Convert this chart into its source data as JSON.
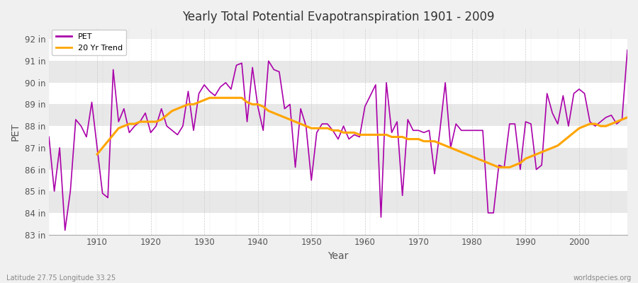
{
  "title": "Yearly Total Potential Evapotranspiration 1901 - 2009",
  "xlabel": "Year",
  "ylabel": "PET",
  "subtitle_left": "Latitude 27.75 Longitude 33.25",
  "subtitle_right": "worldspecies.org",
  "pet_color": "#AA00AA",
  "trend_color": "#FFA500",
  "bg_color": "#F0F0F0",
  "plot_bg_color": "#F0F0F0",
  "band_color_light": "#FFFFFF",
  "band_color_dark": "#E8E8E8",
  "grid_color": "#CCCCCC",
  "ylim": [
    83,
    92.5
  ],
  "yticks": [
    83,
    84,
    85,
    86,
    87,
    88,
    89,
    90,
    91,
    92
  ],
  "ytick_labels": [
    "83 in",
    "84 in",
    "85 in",
    "86 in",
    "87 in",
    "88 in",
    "89 in",
    "90 in",
    "91 in",
    "92 in"
  ],
  "xticks": [
    1910,
    1920,
    1930,
    1940,
    1950,
    1960,
    1970,
    1980,
    1990,
    2000
  ],
  "years": [
    1901,
    1902,
    1903,
    1904,
    1905,
    1906,
    1907,
    1908,
    1909,
    1910,
    1911,
    1912,
    1913,
    1914,
    1915,
    1916,
    1917,
    1918,
    1919,
    1920,
    1921,
    1922,
    1923,
    1924,
    1925,
    1926,
    1927,
    1928,
    1929,
    1930,
    1931,
    1932,
    1933,
    1934,
    1935,
    1936,
    1937,
    1938,
    1939,
    1940,
    1941,
    1942,
    1943,
    1944,
    1945,
    1946,
    1947,
    1948,
    1949,
    1950,
    1951,
    1952,
    1953,
    1954,
    1955,
    1956,
    1957,
    1958,
    1959,
    1960,
    1961,
    1962,
    1963,
    1964,
    1965,
    1966,
    1967,
    1968,
    1969,
    1970,
    1971,
    1972,
    1973,
    1974,
    1975,
    1976,
    1977,
    1978,
    1979,
    1980,
    1981,
    1982,
    1983,
    1984,
    1985,
    1986,
    1987,
    1988,
    1989,
    1990,
    1991,
    1992,
    1993,
    1994,
    1995,
    1996,
    1997,
    1998,
    1999,
    2000,
    2001,
    2002,
    2003,
    2004,
    2005,
    2006,
    2007,
    2008,
    2009
  ],
  "pet_values": [
    87.5,
    85.0,
    87.0,
    83.2,
    85.0,
    88.3,
    88.0,
    87.5,
    89.1,
    87.0,
    84.9,
    84.7,
    90.6,
    88.2,
    88.8,
    87.7,
    88.0,
    88.2,
    88.6,
    87.7,
    88.0,
    88.8,
    88.0,
    87.8,
    87.6,
    88.0,
    89.6,
    87.8,
    89.5,
    89.9,
    89.6,
    89.4,
    89.8,
    90.0,
    89.7,
    90.8,
    90.9,
    88.2,
    90.7,
    88.9,
    87.8,
    91.0,
    90.6,
    90.5,
    88.8,
    89.0,
    86.1,
    88.8,
    88.0,
    85.5,
    87.7,
    88.1,
    88.1,
    87.8,
    87.4,
    88.0,
    87.4,
    87.6,
    87.5,
    88.9,
    89.4,
    89.9,
    83.8,
    90.0,
    87.7,
    88.2,
    84.8,
    88.3,
    87.8,
    87.8,
    87.7,
    87.8,
    85.8,
    87.8,
    90.0,
    87.0,
    88.1,
    87.8,
    87.8,
    87.8,
    87.8,
    87.8,
    84.0,
    84.0,
    86.2,
    86.1,
    88.1,
    88.1,
    86.0,
    88.2,
    88.1,
    86.0,
    86.2,
    89.5,
    88.6,
    88.1,
    89.4,
    88.0,
    89.5,
    89.7,
    89.5,
    88.2,
    88.0,
    88.2,
    88.4,
    88.5,
    88.1,
    88.3,
    91.5
  ],
  "trend_years": [
    1910,
    1911,
    1912,
    1913,
    1914,
    1915,
    1916,
    1917,
    1918,
    1919,
    1920,
    1921,
    1922,
    1923,
    1924,
    1925,
    1926,
    1927,
    1928,
    1929,
    1930,
    1931,
    1932,
    1933,
    1934,
    1935,
    1936,
    1937,
    1938,
    1939,
    1940,
    1941,
    1942,
    1943,
    1944,
    1945,
    1946,
    1947,
    1948,
    1949,
    1950,
    1951,
    1952,
    1953,
    1954,
    1955,
    1956,
    1957,
    1958,
    1959,
    1960,
    1961,
    1962,
    1963,
    1964,
    1965,
    1966,
    1967,
    1968,
    1969,
    1970,
    1971,
    1972,
    1973,
    1974,
    1975,
    1976,
    1977,
    1978,
    1979,
    1980,
    1981,
    1982,
    1983,
    1984,
    1985,
    1986,
    1987,
    1988,
    1989,
    1990,
    1991,
    1992,
    1993,
    1994,
    1995,
    1996,
    1997,
    1998,
    1999,
    2000,
    2001,
    2002,
    2003,
    2004,
    2005,
    2006,
    2007,
    2008,
    2009
  ],
  "trend_values": [
    86.7,
    87.0,
    87.3,
    87.6,
    87.9,
    88.0,
    88.1,
    88.1,
    88.2,
    88.2,
    88.2,
    88.2,
    88.3,
    88.5,
    88.7,
    88.8,
    88.9,
    89.0,
    89.0,
    89.1,
    89.2,
    89.3,
    89.3,
    89.3,
    89.3,
    89.3,
    89.3,
    89.3,
    89.1,
    89.0,
    89.0,
    88.9,
    88.7,
    88.6,
    88.5,
    88.4,
    88.3,
    88.2,
    88.1,
    88.0,
    87.9,
    87.9,
    87.9,
    87.9,
    87.8,
    87.8,
    87.7,
    87.7,
    87.7,
    87.6,
    87.6,
    87.6,
    87.6,
    87.6,
    87.6,
    87.5,
    87.5,
    87.5,
    87.4,
    87.4,
    87.4,
    87.3,
    87.3,
    87.3,
    87.2,
    87.1,
    87.0,
    86.9,
    86.8,
    86.7,
    86.6,
    86.5,
    86.4,
    86.3,
    86.2,
    86.1,
    86.1,
    86.1,
    86.2,
    86.3,
    86.5,
    86.6,
    86.7,
    86.8,
    86.9,
    87.0,
    87.1,
    87.3,
    87.5,
    87.7,
    87.9,
    88.0,
    88.1,
    88.1,
    88.0,
    88.0,
    88.1,
    88.2,
    88.3,
    88.4
  ]
}
